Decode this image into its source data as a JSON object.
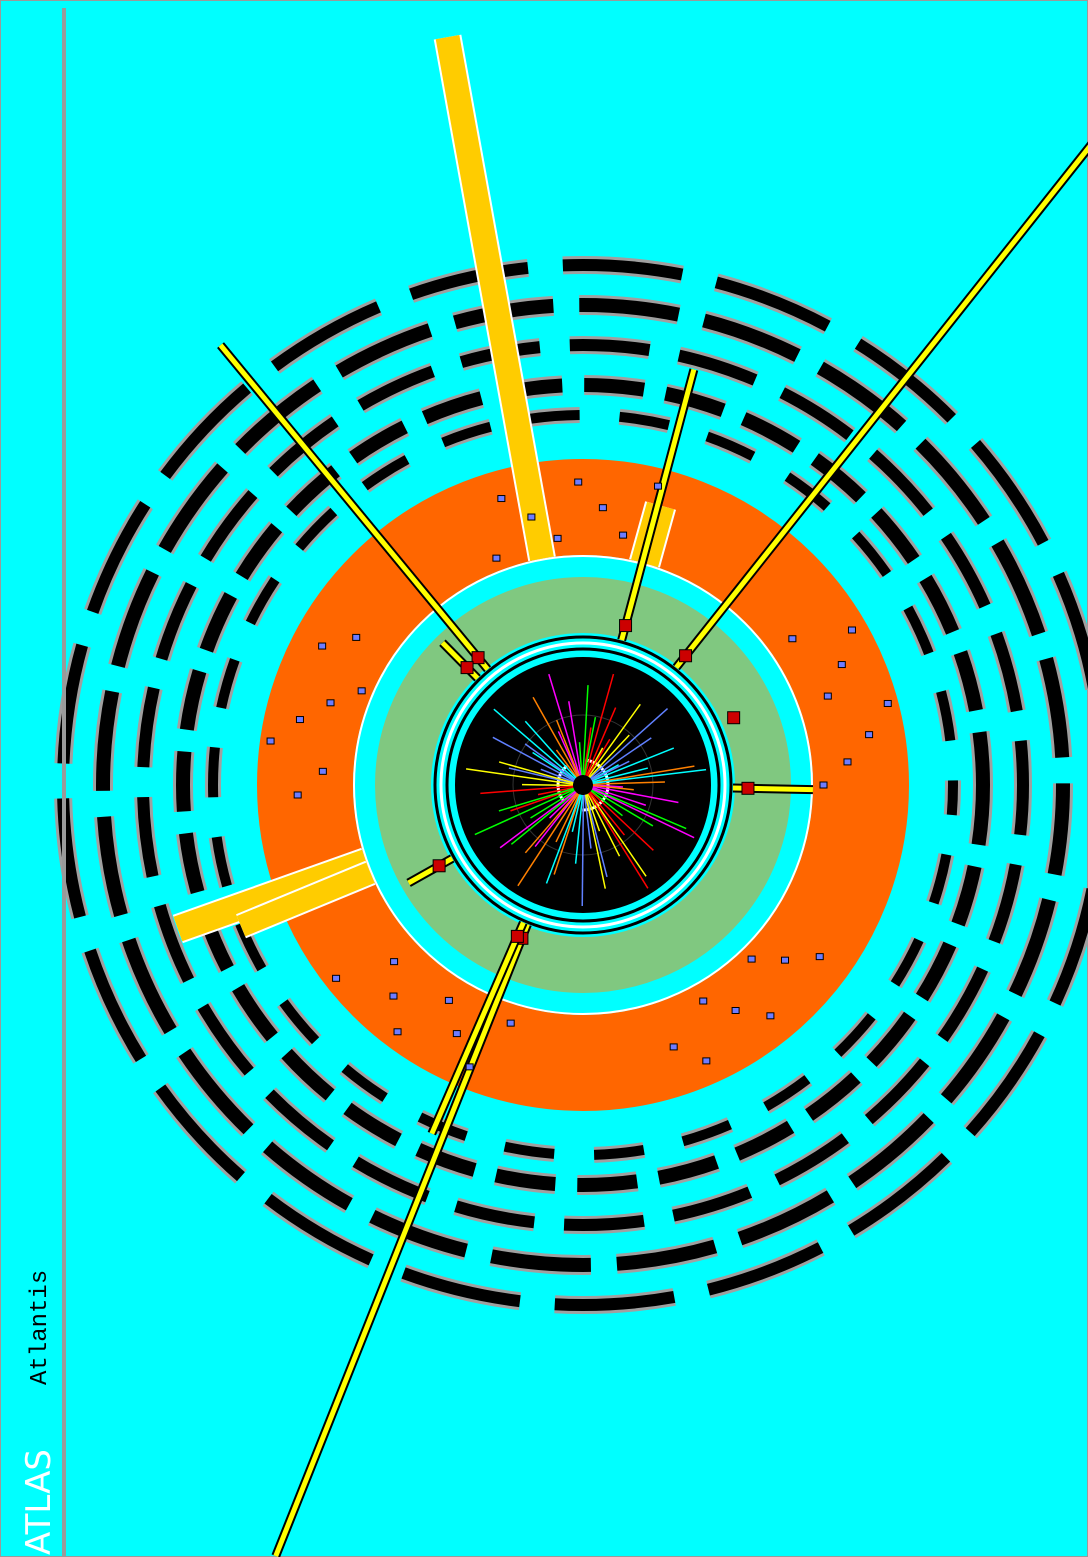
{
  "sidebar": {
    "logo": "ATLAS",
    "software": "Atlantis"
  }
}
